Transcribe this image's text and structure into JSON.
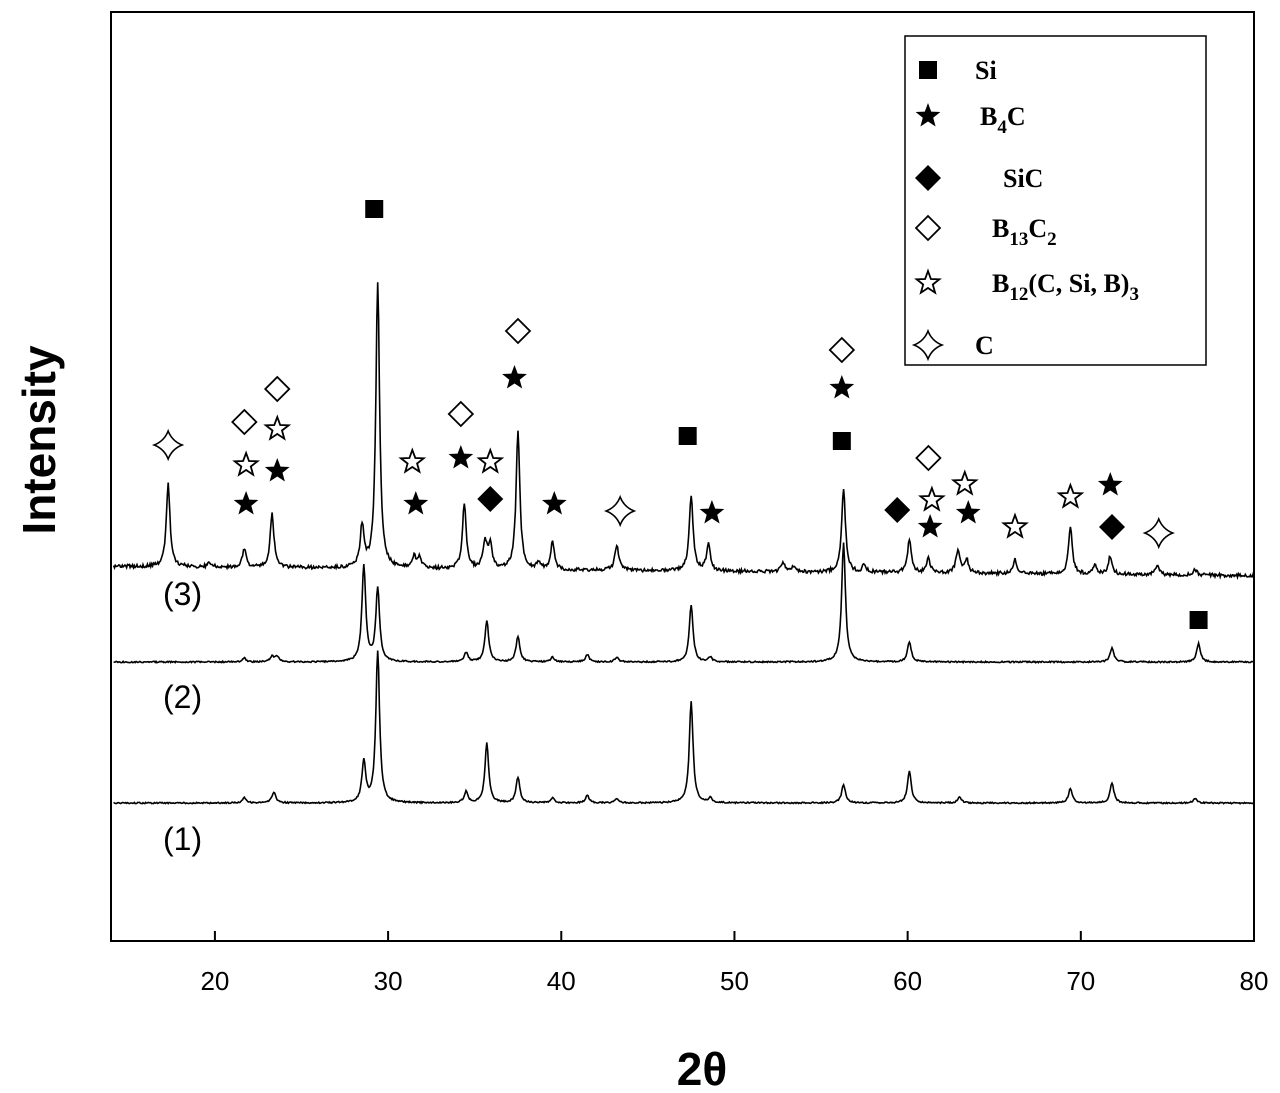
{
  "chart_data": {
    "type": "line",
    "title": "",
    "xlabel": "2θ",
    "ylabel": "Intensity",
    "xlim": [
      14,
      80
    ],
    "xticks": [
      20,
      30,
      40,
      50,
      60,
      70,
      80
    ],
    "y_ticks_shown": false,
    "grid": false,
    "legend_position": "top-right",
    "legend": [
      {
        "symbol": "filled-square",
        "parts": [
          {
            "t": "Si"
          }
        ]
      },
      {
        "symbol": "filled-star",
        "parts": [
          {
            "t": "B"
          },
          {
            "t": "4",
            "sub": true
          },
          {
            "t": "C"
          }
        ]
      },
      {
        "symbol": "filled-diamond",
        "parts": [
          {
            "t": "SiC"
          }
        ]
      },
      {
        "symbol": "open-diamond",
        "parts": [
          {
            "t": "B"
          },
          {
            "t": "13",
            "sub": true
          },
          {
            "t": "C"
          },
          {
            "t": "2",
            "sub": true
          }
        ]
      },
      {
        "symbol": "open-star",
        "parts": [
          {
            "t": "B"
          },
          {
            "t": "12",
            "sub": true
          },
          {
            "t": "(C, Si, B)"
          },
          {
            "t": "3",
            "sub": true
          }
        ]
      },
      {
        "symbol": "open-four-point-star",
        "parts": [
          {
            "t": "C"
          }
        ]
      }
    ],
    "series": [
      {
        "label": "(1)",
        "baseline": 0,
        "peaks": [
          [
            21.7,
            6
          ],
          [
            23.4,
            12
          ],
          [
            28.6,
            45
          ],
          [
            29.4,
            165
          ],
          [
            34.5,
            12
          ],
          [
            35.7,
            65
          ],
          [
            37.5,
            28
          ],
          [
            39.5,
            5
          ],
          [
            41.5,
            8
          ],
          [
            43.2,
            5
          ],
          [
            47.5,
            110
          ],
          [
            48.6,
            5
          ],
          [
            56.3,
            20
          ],
          [
            60.1,
            35
          ],
          [
            63.0,
            6
          ],
          [
            69.4,
            16
          ],
          [
            71.8,
            22
          ],
          [
            76.6,
            5
          ]
        ]
      },
      {
        "label": "(2)",
        "baseline": 140,
        "peaks": [
          [
            21.7,
            4
          ],
          [
            23.3,
            6
          ],
          [
            23.6,
            6
          ],
          [
            28.6,
            105
          ],
          [
            29.4,
            80
          ],
          [
            34.5,
            10
          ],
          [
            35.7,
            45
          ],
          [
            37.5,
            28
          ],
          [
            39.5,
            5
          ],
          [
            41.5,
            8
          ],
          [
            43.2,
            5
          ],
          [
            47.5,
            62
          ],
          [
            48.6,
            5
          ],
          [
            56.3,
            130
          ],
          [
            60.1,
            22
          ],
          [
            71.8,
            15
          ],
          [
            76.8,
            20
          ]
        ]
      },
      {
        "label": "(3)",
        "baseline": 230,
        "slope": 0.35,
        "peaks": [
          [
            17.3,
            90
          ],
          [
            19.7,
            5
          ],
          [
            21.7,
            20
          ],
          [
            23.3,
            58
          ],
          [
            28.5,
            45
          ],
          [
            29.4,
            310
          ],
          [
            31.5,
            12
          ],
          [
            31.8,
            12
          ],
          [
            34.4,
            70
          ],
          [
            35.6,
            30
          ],
          [
            35.9,
            25
          ],
          [
            37.5,
            150
          ],
          [
            38.7,
            8
          ],
          [
            39.5,
            30
          ],
          [
            43.2,
            28
          ],
          [
            47.5,
            82
          ],
          [
            48.5,
            30
          ],
          [
            52.8,
            10
          ],
          [
            53.4,
            6
          ],
          [
            56.3,
            90
          ],
          [
            57.5,
            8
          ],
          [
            60.1,
            35
          ],
          [
            61.2,
            15
          ],
          [
            62.9,
            25
          ],
          [
            63.4,
            15
          ],
          [
            66.2,
            15
          ],
          [
            69.4,
            50
          ],
          [
            70.8,
            10
          ],
          [
            71.7,
            20
          ],
          [
            74.4,
            10
          ],
          [
            76.6,
            6
          ]
        ]
      }
    ],
    "phase_markers": [
      {
        "phase": "Si",
        "x": [
          29.2,
          47.3,
          56.2,
          76.8
        ]
      },
      {
        "phase": "B4C",
        "x": [
          21.8,
          23.6,
          31.6,
          34.2,
          37.3,
          39.6,
          48.7,
          56.2,
          61.3,
          63.5,
          71.7
        ]
      },
      {
        "phase": "SiC",
        "x": [
          35.9,
          59.4,
          71.8
        ]
      },
      {
        "phase": "B13C2",
        "x": [
          21.7,
          23.6,
          34.2,
          37.5,
          56.2,
          61.2
        ]
      },
      {
        "phase": "B12(C, Si, B)3",
        "x": [
          21.8,
          23.6,
          31.4,
          35.9,
          61.4,
          63.3,
          66.2,
          69.4
        ]
      },
      {
        "phase": "C",
        "x": [
          17.3,
          43.4,
          74.5
        ]
      }
    ]
  }
}
